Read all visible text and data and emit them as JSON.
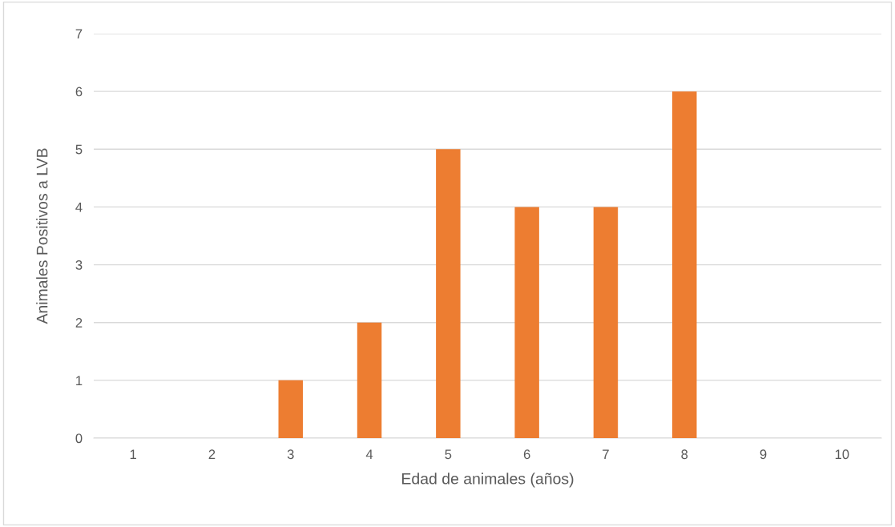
{
  "chart_data": {
    "type": "bar",
    "xlabel": "Edad de animales (años)",
    "ylabel": "Animales Positivos a LVB",
    "categories": [
      "1",
      "2",
      "3",
      "4",
      "5",
      "6",
      "7",
      "8",
      "9",
      "10"
    ],
    "values": [
      0,
      0,
      1,
      2,
      5,
      4,
      4,
      6,
      0,
      0
    ],
    "color": "#ed7d31",
    "ylim": [
      0,
      7
    ],
    "yticks": [
      0,
      1,
      2,
      3,
      4,
      5,
      6,
      7
    ],
    "grid": "y"
  }
}
